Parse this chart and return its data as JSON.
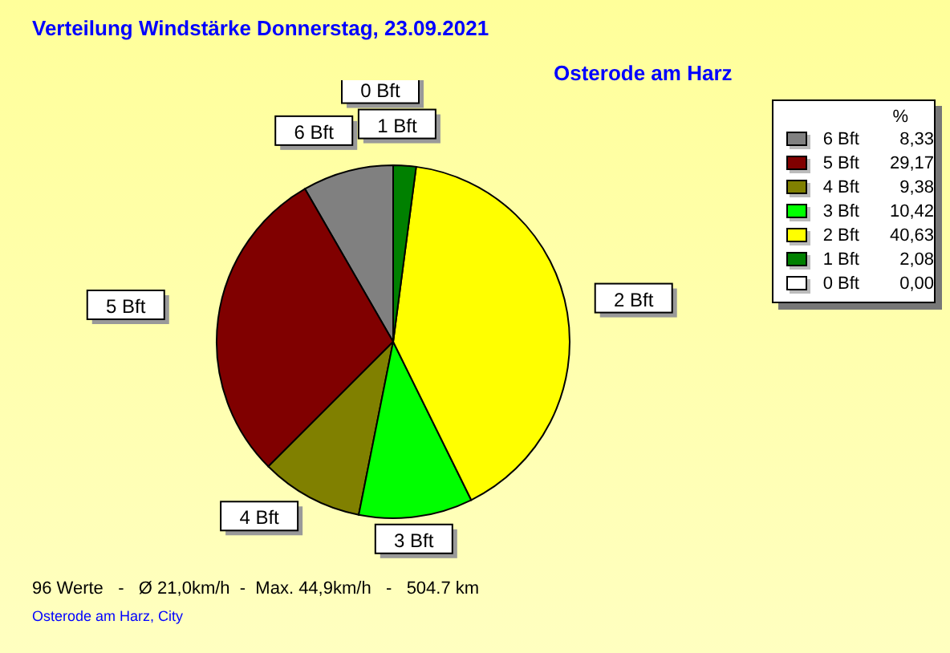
{
  "chart_data": {
    "type": "pie",
    "title": "Verteilung Windstärke  Donnerstag, 23.09.2021",
    "subtitle": "Osterode am Harz",
    "legend_title": "%",
    "legend": "top right",
    "categories": [
      "6 Bft",
      "5 Bft",
      "4 Bft",
      "3 Bft",
      "2 Bft",
      "1 Bft",
      "0 Bft"
    ],
    "values": [
      8.33,
      29.17,
      9.38,
      10.42,
      40.63,
      2.08,
      0.0
    ],
    "value_labels": [
      "8,33",
      "29,17",
      "9,38",
      "10,42",
      "40,63",
      "2,08",
      "0,00"
    ],
    "colors": [
      "#808080",
      "#800000",
      "#808000",
      "#00ff00",
      "#ffff00",
      "#008000",
      "#ffffff"
    ],
    "annotations": [
      "96 Werte   -   Ø 21,0km/h  -  Max. 44,9km/h   -   504.7 km",
      "Osterode am Harz, City"
    ]
  }
}
